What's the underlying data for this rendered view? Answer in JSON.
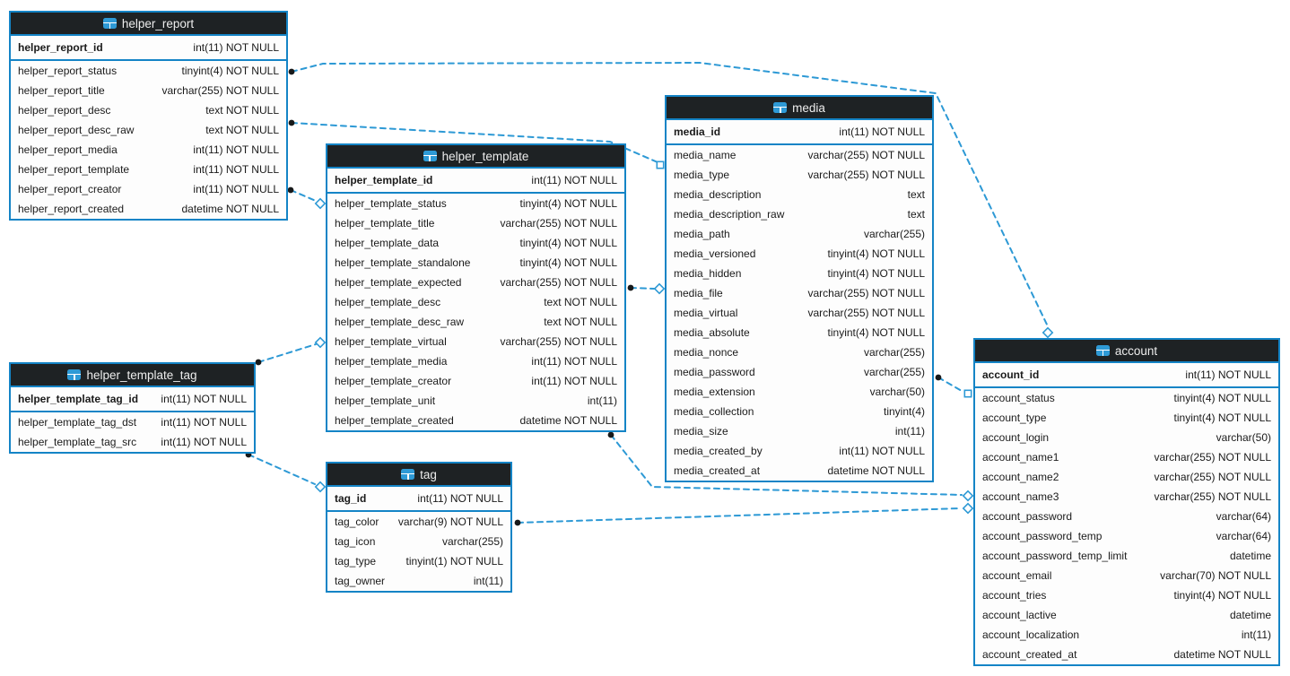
{
  "diagram": {
    "background": "#ffffff",
    "colors": {
      "accent": "#1484c6",
      "line": "#2d99d5",
      "header_bg": "#1e2224",
      "header_text": "#ededed",
      "text": "#1a1a1a",
      "body_bg": "#fdfdfd",
      "dot": "#17191a",
      "icon": "#2e9ad6"
    },
    "table_icon": "table-grid-icon",
    "tables": [
      {
        "id": "helper_report",
        "title": "helper_report",
        "pk": {
          "name": "helper_report_id",
          "type": "int(11) NOT NULL"
        },
        "columns": [
          {
            "name": "helper_report_status",
            "type": "tinyint(4) NOT NULL"
          },
          {
            "name": "helper_report_title",
            "type": "varchar(255) NOT NULL"
          },
          {
            "name": "helper_report_desc",
            "type": "text NOT NULL"
          },
          {
            "name": "helper_report_desc_raw",
            "type": "text NOT NULL"
          },
          {
            "name": "helper_report_media",
            "type": "int(11) NOT NULL"
          },
          {
            "name": "helper_report_template",
            "type": "int(11) NOT NULL"
          },
          {
            "name": "helper_report_creator",
            "type": "int(11) NOT NULL"
          },
          {
            "name": "helper_report_created",
            "type": "datetime NOT NULL"
          }
        ]
      },
      {
        "id": "helper_template",
        "title": "helper_template",
        "pk": {
          "name": "helper_template_id",
          "type": "int(11) NOT NULL"
        },
        "columns": [
          {
            "name": "helper_template_status",
            "type": "tinyint(4) NOT NULL"
          },
          {
            "name": "helper_template_title",
            "type": "varchar(255) NOT NULL"
          },
          {
            "name": "helper_template_data",
            "type": "tinyint(4) NOT NULL"
          },
          {
            "name": "helper_template_standalone",
            "type": "tinyint(4) NOT NULL"
          },
          {
            "name": "helper_template_expected",
            "type": "varchar(255) NOT NULL"
          },
          {
            "name": "helper_template_desc",
            "type": "text NOT NULL"
          },
          {
            "name": "helper_template_desc_raw",
            "type": "text NOT NULL"
          },
          {
            "name": "helper_template_virtual",
            "type": "varchar(255) NOT NULL"
          },
          {
            "name": "helper_template_media",
            "type": "int(11) NOT NULL"
          },
          {
            "name": "helper_template_creator",
            "type": "int(11) NOT NULL"
          },
          {
            "name": "helper_template_unit",
            "type": "int(11)"
          },
          {
            "name": "helper_template_created",
            "type": "datetime NOT NULL"
          }
        ]
      },
      {
        "id": "media",
        "title": "media",
        "pk": {
          "name": "media_id",
          "type": "int(11) NOT NULL"
        },
        "columns": [
          {
            "name": "media_name",
            "type": "varchar(255) NOT NULL"
          },
          {
            "name": "media_type",
            "type": "varchar(255) NOT NULL"
          },
          {
            "name": "media_description",
            "type": "text"
          },
          {
            "name": "media_description_raw",
            "type": "text"
          },
          {
            "name": "media_path",
            "type": "varchar(255)"
          },
          {
            "name": "media_versioned",
            "type": "tinyint(4) NOT NULL"
          },
          {
            "name": "media_hidden",
            "type": "tinyint(4) NOT NULL"
          },
          {
            "name": "media_file",
            "type": "varchar(255) NOT NULL"
          },
          {
            "name": "media_virtual",
            "type": "varchar(255) NOT NULL"
          },
          {
            "name": "media_absolute",
            "type": "tinyint(4) NOT NULL"
          },
          {
            "name": "media_nonce",
            "type": "varchar(255)"
          },
          {
            "name": "media_password",
            "type": "varchar(255)"
          },
          {
            "name": "media_extension",
            "type": "varchar(50)"
          },
          {
            "name": "media_collection",
            "type": "tinyint(4)"
          },
          {
            "name": "media_size",
            "type": "int(11)"
          },
          {
            "name": "media_created_by",
            "type": "int(11) NOT NULL"
          },
          {
            "name": "media_created_at",
            "type": "datetime NOT NULL"
          }
        ]
      },
      {
        "id": "account",
        "title": "account",
        "pk": {
          "name": "account_id",
          "type": "int(11) NOT NULL"
        },
        "columns": [
          {
            "name": "account_status",
            "type": "tinyint(4) NOT NULL"
          },
          {
            "name": "account_type",
            "type": "tinyint(4) NOT NULL"
          },
          {
            "name": "account_login",
            "type": "varchar(50)"
          },
          {
            "name": "account_name1",
            "type": "varchar(255) NOT NULL"
          },
          {
            "name": "account_name2",
            "type": "varchar(255) NOT NULL"
          },
          {
            "name": "account_name3",
            "type": "varchar(255) NOT NULL"
          },
          {
            "name": "account_password",
            "type": "varchar(64)"
          },
          {
            "name": "account_password_temp",
            "type": "varchar(64)"
          },
          {
            "name": "account_password_temp_limit",
            "type": "datetime"
          },
          {
            "name": "account_email",
            "type": "varchar(70) NOT NULL"
          },
          {
            "name": "account_tries",
            "type": "tinyint(4) NOT NULL"
          },
          {
            "name": "account_lactive",
            "type": "datetime"
          },
          {
            "name": "account_localization",
            "type": "int(11)"
          },
          {
            "name": "account_created_at",
            "type": "datetime NOT NULL"
          }
        ]
      },
      {
        "id": "helper_template_tag",
        "title": "helper_template_tag",
        "pk": {
          "name": "helper_template_tag_id",
          "type": "int(11) NOT NULL"
        },
        "columns": [
          {
            "name": "helper_template_tag_dst",
            "type": "int(11) NOT NULL"
          },
          {
            "name": "helper_template_tag_src",
            "type": "int(11) NOT NULL"
          }
        ]
      },
      {
        "id": "tag",
        "title": "tag",
        "pk": {
          "name": "tag_id",
          "type": "int(11) NOT NULL"
        },
        "columns": [
          {
            "name": "tag_color",
            "type": "varchar(9) NOT NULL"
          },
          {
            "name": "tag_icon",
            "type": "varchar(255)"
          },
          {
            "name": "tag_type",
            "type": "tinyint(1) NOT NULL"
          },
          {
            "name": "tag_owner",
            "type": "int(11)"
          }
        ]
      }
    ],
    "relationships": [
      {
        "from": "helper_report",
        "to": "account"
      },
      {
        "from": "helper_report",
        "to": "media"
      },
      {
        "from": "helper_report",
        "to": "helper_template"
      },
      {
        "from": "helper_template_tag",
        "to": "helper_template"
      },
      {
        "from": "helper_template_tag",
        "to": "tag"
      },
      {
        "from": "helper_template",
        "to": "media"
      },
      {
        "from": "helper_template",
        "to": "account"
      },
      {
        "from": "tag",
        "to": "account"
      },
      {
        "from": "media",
        "to": "account"
      }
    ]
  }
}
